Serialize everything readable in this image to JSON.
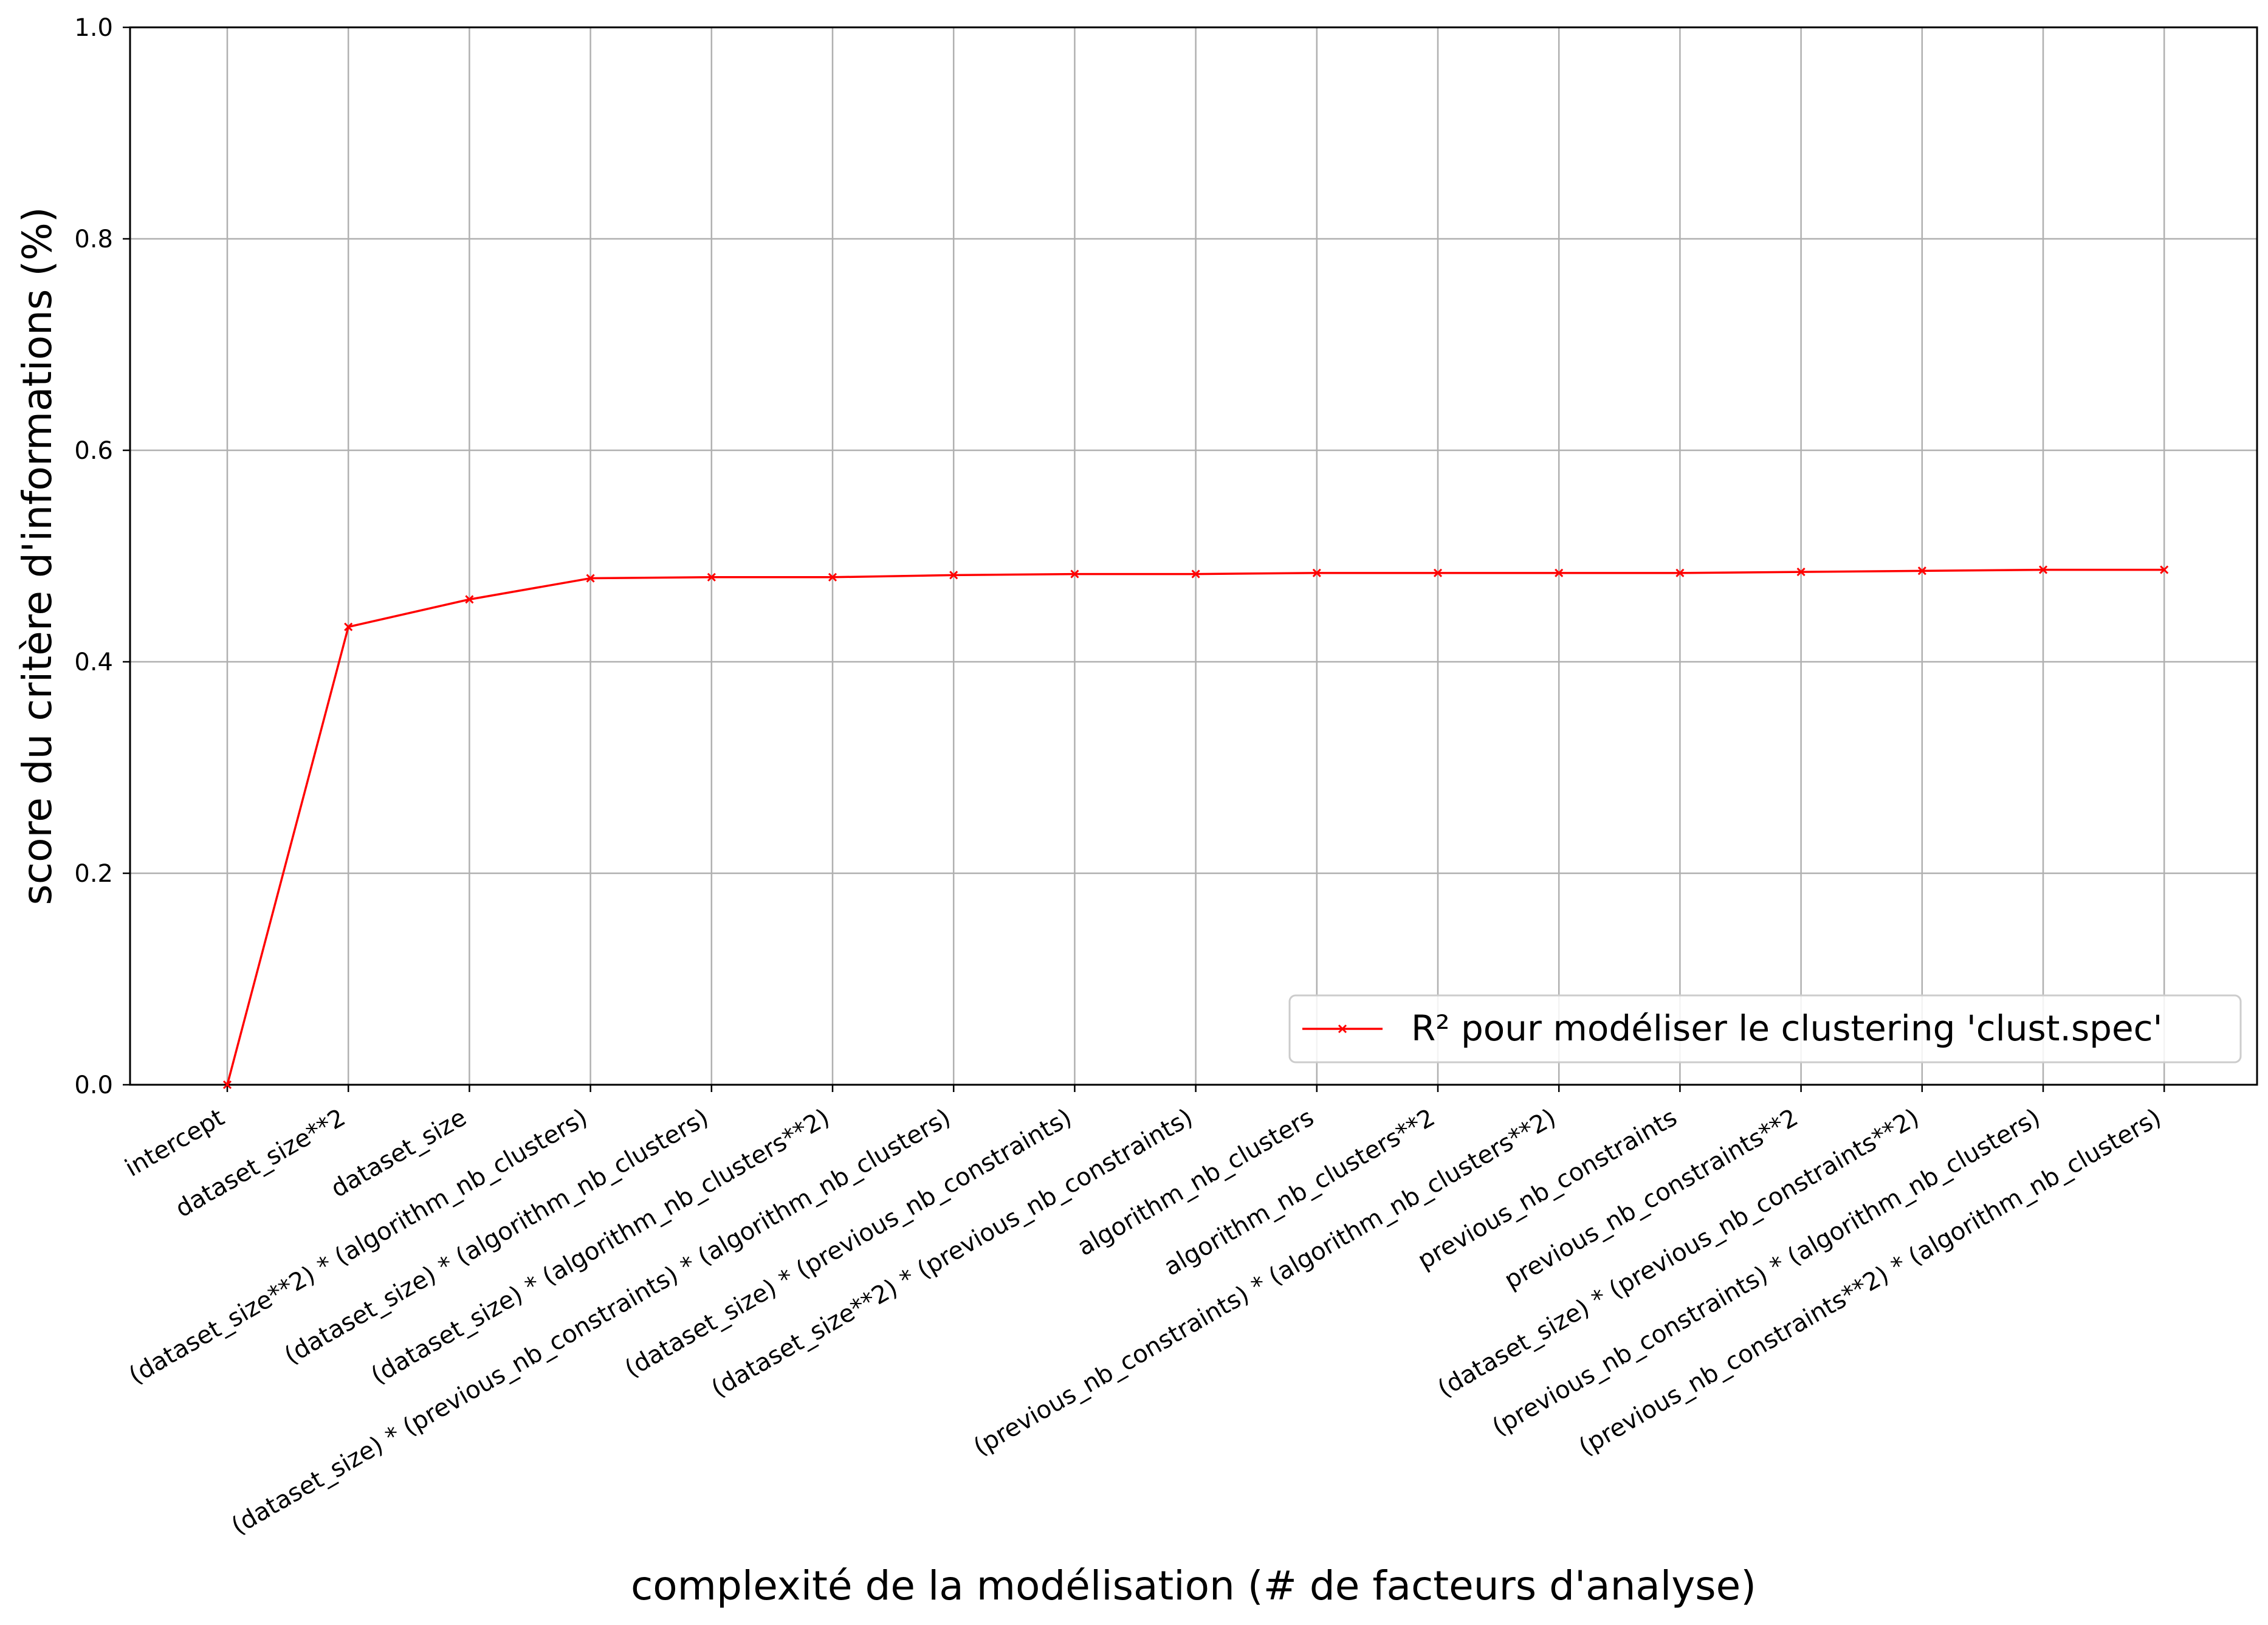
{
  "chart_data": {
    "type": "line",
    "title": "",
    "xlabel": "complexité de la modélisation (# de facteurs d'analyse)",
    "ylabel": "score du critère d'informations (%)",
    "ylim": [
      0,
      1.0
    ],
    "yticks": [
      "0.0",
      "0.2",
      "0.4",
      "0.6",
      "0.8",
      "1.0"
    ],
    "grid": true,
    "legend_position": "lower-right",
    "categories": [
      "intercept",
      "dataset_size**2",
      "dataset_size",
      "(dataset_size**2) * (algorithm_nb_clusters)",
      "(dataset_size) * (algorithm_nb_clusters)",
      "(dataset_size) * (algorithm_nb_clusters**2)",
      "(dataset_size) * (previous_nb_constraints) * (algorithm_nb_clusters)",
      "(dataset_size) * (previous_nb_constraints)",
      "(dataset_size**2) * (previous_nb_constraints)",
      "algorithm_nb_clusters",
      "algorithm_nb_clusters**2",
      "(previous_nb_constraints) * (algorithm_nb_clusters**2)",
      "previous_nb_constraints",
      "previous_nb_constraints**2",
      "(dataset_size) * (previous_nb_constraints**2)",
      "(previous_nb_constraints) * (algorithm_nb_clusters)",
      "(previous_nb_constraints**2) * (algorithm_nb_clusters)"
    ],
    "series": [
      {
        "name": "R² pour modéliser le clustering 'clust.spec'",
        "color": "#ff0000",
        "marker": "x",
        "values": [
          0.0,
          0.433,
          0.459,
          0.479,
          0.48,
          0.48,
          0.482,
          0.483,
          0.483,
          0.484,
          0.484,
          0.484,
          0.484,
          0.485,
          0.486,
          0.487,
          0.487
        ]
      }
    ]
  }
}
